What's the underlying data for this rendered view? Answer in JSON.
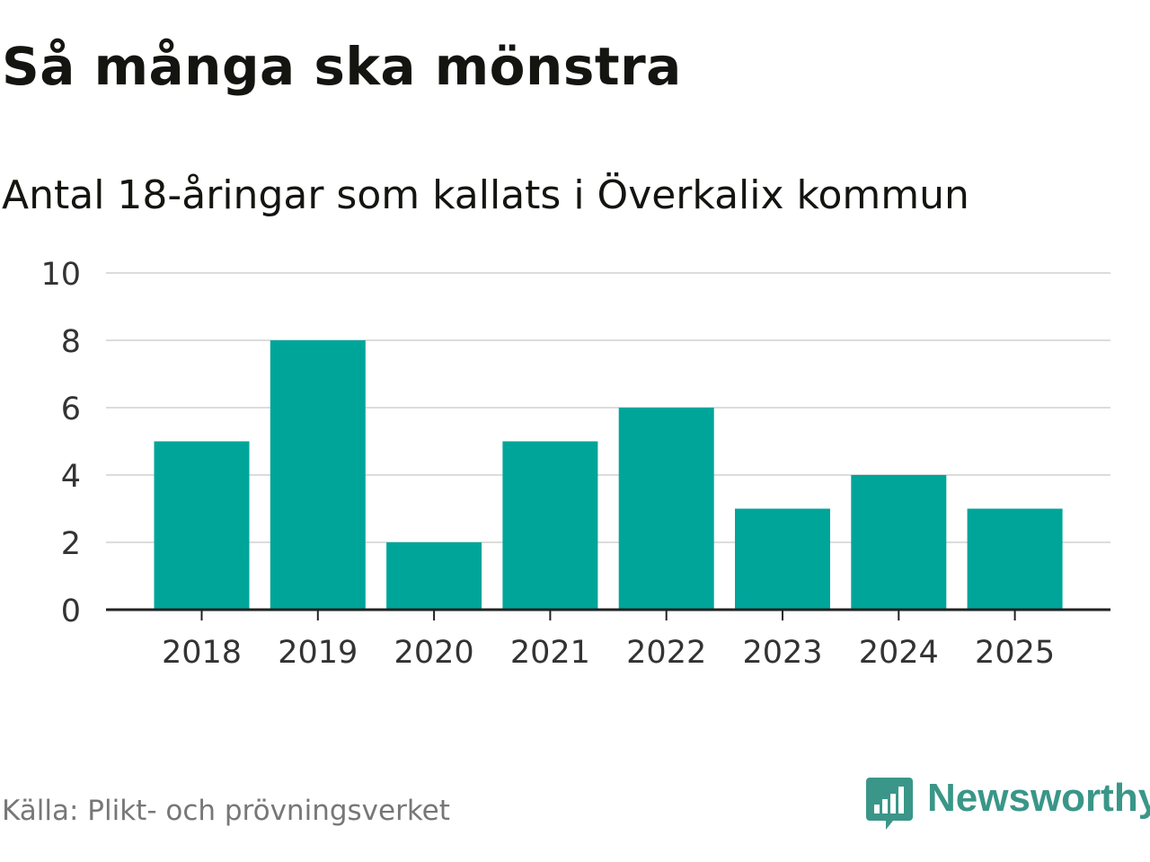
{
  "title": "Så många ska mönstra",
  "subtitle": "Antal 18-åringar som kallats i Överkalix kommun",
  "source": "Källa: Plikt- och prövningsverket",
  "brand": {
    "name": "Newsworthy",
    "color": "#3a9688",
    "icon": "newsworthy-logo-icon"
  },
  "chart_data": {
    "type": "bar",
    "categories": [
      "2018",
      "2019",
      "2020",
      "2021",
      "2022",
      "2023",
      "2024",
      "2025"
    ],
    "values": [
      5,
      8,
      2,
      5,
      6,
      3,
      4,
      3
    ],
    "ylim": [
      0,
      10
    ],
    "yticks": [
      "0",
      "2",
      "4",
      "6",
      "8",
      "10"
    ],
    "grid": true,
    "bar_color": "#00a59a",
    "xlabel": "",
    "ylabel": ""
  }
}
